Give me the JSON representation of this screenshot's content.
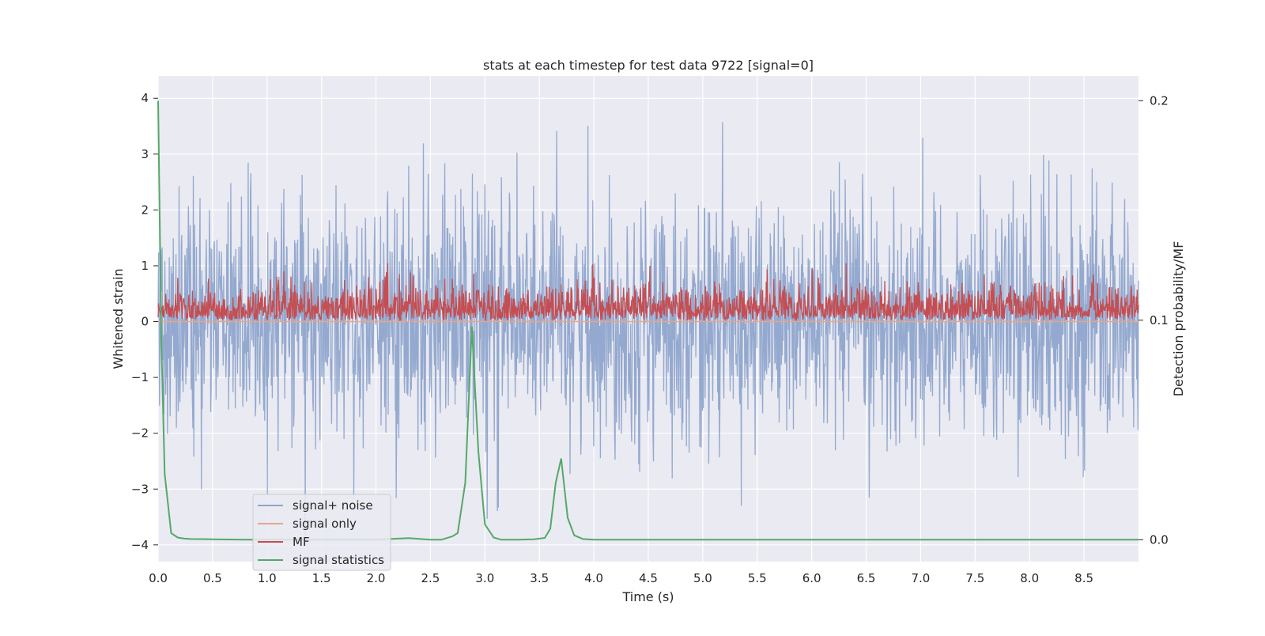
{
  "chart_data": {
    "type": "line",
    "title": "stats at each timestep for test data 9722 [signal=0]",
    "xlabel": "Time (s)",
    "ylabel": "Whitened strain",
    "y2label": "Detection probability/MF",
    "xlim": [
      0,
      9.0
    ],
    "ylim": [
      -4.3,
      4.4
    ],
    "y2lim": [
      -0.01,
      0.2113
    ],
    "x_ticks": [
      0.0,
      0.5,
      1.0,
      1.5,
      2.0,
      2.5,
      3.0,
      3.5,
      4.0,
      4.5,
      5.0,
      5.5,
      6.0,
      6.5,
      7.0,
      7.5,
      8.0,
      8.5
    ],
    "x_tick_labels": [
      "0.0",
      "0.5",
      "1.0",
      "1.5",
      "2.0",
      "2.5",
      "3.0",
      "3.5",
      "4.0",
      "4.5",
      "5.0",
      "5.5",
      "6.0",
      "6.5",
      "7.0",
      "7.5",
      "8.0",
      "8.5"
    ],
    "y_ticks": [
      -4,
      -3,
      -2,
      -1,
      0,
      1,
      2,
      3,
      4
    ],
    "y_tick_labels": [
      "−4",
      "−3",
      "−2",
      "−1",
      "0",
      "1",
      "2",
      "3",
      "4"
    ],
    "y2_ticks": [
      0.0,
      0.1,
      0.2
    ],
    "y2_tick_labels": [
      "0.0",
      "0.1",
      "0.2"
    ],
    "grid": true,
    "legend": {
      "placement": "lower-left",
      "entries": [
        {
          "label": "signal+ noise",
          "color": "#8fa5cc"
        },
        {
          "label": "signal only",
          "color": "#e8a68a"
        },
        {
          "label": "MF",
          "color": "#c44e52"
        },
        {
          "label": "signal statistics",
          "color": "#55a868"
        }
      ]
    },
    "series": [
      {
        "name": "signal+ noise",
        "axis": "left",
        "color": "#8fa5cc",
        "description": "dense whitened strain noise over 0–9 s",
        "approx_range": [
          -3.9,
          4.0
        ],
        "typical_envelope": [
          -2.3,
          2.5
        ],
        "n_points": 2200
      },
      {
        "name": "signal only",
        "axis": "left",
        "color": "#e8a68a",
        "x": [
          0.0,
          9.0
        ],
        "y": [
          0.0,
          0.0
        ]
      },
      {
        "name": "MF",
        "axis": "right",
        "color": "#c44e52",
        "description": "matched-filter output, mostly between 0.1 and 0.125",
        "approx_range": [
          0.1,
          0.126
        ],
        "n_points": 2200
      },
      {
        "name": "signal statistics",
        "axis": "right",
        "color": "#55a868",
        "x": [
          0.0,
          0.03,
          0.06,
          0.12,
          0.18,
          0.24,
          0.3,
          0.5,
          0.8,
          1.0,
          1.5,
          2.0,
          2.3,
          2.5,
          2.6,
          2.7,
          2.75,
          2.82,
          2.88,
          2.94,
          3.0,
          3.08,
          3.15,
          3.3,
          3.45,
          3.55,
          3.6,
          3.65,
          3.7,
          3.76,
          3.82,
          3.9,
          4.0,
          5.0,
          6.0,
          7.0,
          8.0,
          8.5,
          8.7,
          9.0
        ],
        "y": [
          0.2,
          0.09,
          0.03,
          0.003,
          0.001,
          0.0005,
          0.0003,
          0.0002,
          0.0,
          0.0,
          0.0,
          0.0,
          0.0007,
          0.0,
          0.0,
          0.0015,
          0.003,
          0.026,
          0.097,
          0.04,
          0.007,
          0.001,
          0.0,
          0.0,
          0.0002,
          0.0008,
          0.005,
          0.026,
          0.037,
          0.01,
          0.002,
          0.0003,
          0.0,
          0.0,
          0.0,
          0.0,
          0.0,
          0.0,
          0.0,
          0.0
        ]
      }
    ]
  }
}
